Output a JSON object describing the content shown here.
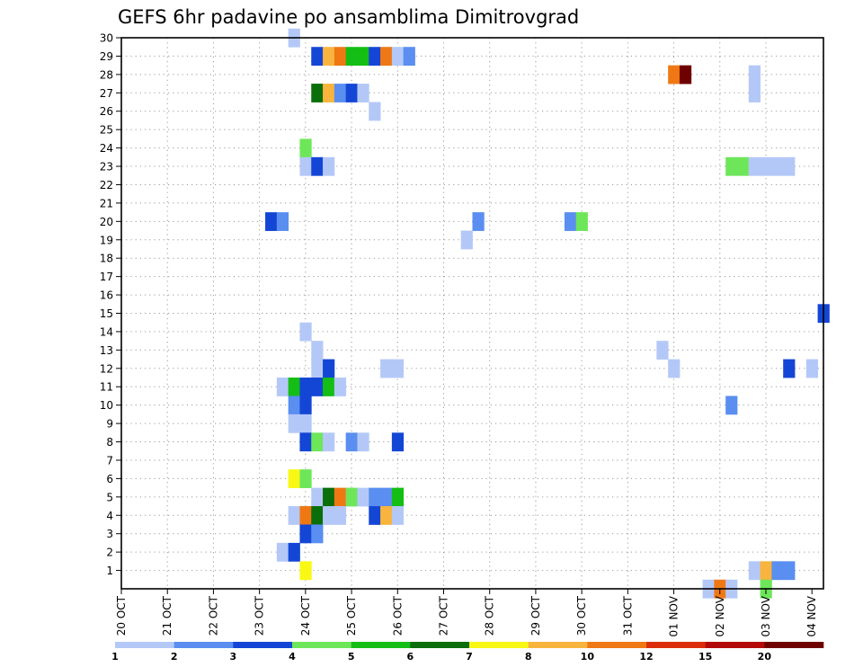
{
  "chart_data": {
    "type": "heatmap",
    "title": "GEFS 6hr padavine po ansamblima Dimitrovgrad",
    "xlabel": "",
    "ylabel": "",
    "x_tick_labels": [
      "20 OCT",
      "21 OCT",
      "22 OCT",
      "23 OCT",
      "24 OCT",
      "25 OCT",
      "26 OCT",
      "27 OCT",
      "28 OCT",
      "29 OCT",
      "30 OCT",
      "31 OCT",
      "01 NOV",
      "02 NOV",
      "03 NOV",
      "04 NOV"
    ],
    "y_tick_labels": [
      "1",
      "2",
      "3",
      "4",
      "5",
      "6",
      "7",
      "8",
      "9",
      "10",
      "11",
      "12",
      "13",
      "14",
      "15",
      "16",
      "17",
      "18",
      "19",
      "20",
      "21",
      "22",
      "23",
      "24",
      "25",
      "26",
      "27",
      "28",
      "29",
      "30"
    ],
    "x_range_steps": [
      0,
      61
    ],
    "y_range": [
      0,
      30
    ],
    "grid": true,
    "colorbar": {
      "labels": [
        "1",
        "2",
        "3",
        "4",
        "5",
        "6",
        "7",
        "8",
        "10",
        "12",
        "15",
        "20"
      ],
      "colors": [
        "#b4c8f8",
        "#5a8ef0",
        "#1446d6",
        "#6ee65a",
        "#14be14",
        "#0a6e0a",
        "#f8f814",
        "#f8b43c",
        "#f07814",
        "#dc2d0a",
        "#b40a0a",
        "#6e0000"
      ]
    },
    "cells": [
      {
        "member": 30,
        "step": 15,
        "cat": 1
      },
      {
        "member": 29,
        "step": 17,
        "cat": 3
      },
      {
        "member": 29,
        "step": 18,
        "cat": 8
      },
      {
        "member": 29,
        "step": 19,
        "cat": 9
      },
      {
        "member": 29,
        "step": 20,
        "cat": 5
      },
      {
        "member": 29,
        "step": 21,
        "cat": 5
      },
      {
        "member": 29,
        "step": 22,
        "cat": 3
      },
      {
        "member": 29,
        "step": 23,
        "cat": 9
      },
      {
        "member": 29,
        "step": 24,
        "cat": 1
      },
      {
        "member": 29,
        "step": 25,
        "cat": 2
      },
      {
        "member": 28,
        "step": 48,
        "cat": 9
      },
      {
        "member": 28,
        "step": 49,
        "cat": 12
      },
      {
        "member": 28,
        "step": 55,
        "cat": 1
      },
      {
        "member": 27,
        "step": 17,
        "cat": 6
      },
      {
        "member": 27,
        "step": 18,
        "cat": 8
      },
      {
        "member": 27,
        "step": 19,
        "cat": 2
      },
      {
        "member": 27,
        "step": 20,
        "cat": 3
      },
      {
        "member": 27,
        "step": 21,
        "cat": 1
      },
      {
        "member": 27,
        "step": 55,
        "cat": 1
      },
      {
        "member": 26,
        "step": 22,
        "cat": 1
      },
      {
        "member": 24,
        "step": 16,
        "cat": 4
      },
      {
        "member": 23,
        "step": 16,
        "cat": 1
      },
      {
        "member": 23,
        "step": 17,
        "cat": 3
      },
      {
        "member": 23,
        "step": 18,
        "cat": 1
      },
      {
        "member": 23,
        "step": 53,
        "cat": 4
      },
      {
        "member": 23,
        "step": 54,
        "cat": 4
      },
      {
        "member": 23,
        "step": 55,
        "cat": 1
      },
      {
        "member": 23,
        "step": 56,
        "cat": 1
      },
      {
        "member": 23,
        "step": 57,
        "cat": 1
      },
      {
        "member": 23,
        "step": 58,
        "cat": 1
      },
      {
        "member": 20,
        "step": 13,
        "cat": 3
      },
      {
        "member": 20,
        "step": 14,
        "cat": 2
      },
      {
        "member": 20,
        "step": 31,
        "cat": 2
      },
      {
        "member": 20,
        "step": 39,
        "cat": 2
      },
      {
        "member": 20,
        "step": 40,
        "cat": 4
      },
      {
        "member": 19,
        "step": 30,
        "cat": 1
      },
      {
        "member": 15,
        "step": 61,
        "cat": 3
      },
      {
        "member": 14,
        "step": 16,
        "cat": 1
      },
      {
        "member": 13,
        "step": 17,
        "cat": 1
      },
      {
        "member": 13,
        "step": 47,
        "cat": 1
      },
      {
        "member": 12,
        "step": 17,
        "cat": 1
      },
      {
        "member": 12,
        "step": 18,
        "cat": 3
      },
      {
        "member": 12,
        "step": 23,
        "cat": 1
      },
      {
        "member": 12,
        "step": 24,
        "cat": 1
      },
      {
        "member": 12,
        "step": 48,
        "cat": 1
      },
      {
        "member": 12,
        "step": 58,
        "cat": 3
      },
      {
        "member": 12,
        "step": 60,
        "cat": 1
      },
      {
        "member": 11,
        "step": 14,
        "cat": 1
      },
      {
        "member": 11,
        "step": 15,
        "cat": 5
      },
      {
        "member": 11,
        "step": 16,
        "cat": 3
      },
      {
        "member": 11,
        "step": 17,
        "cat": 3
      },
      {
        "member": 11,
        "step": 18,
        "cat": 5
      },
      {
        "member": 11,
        "step": 19,
        "cat": 1
      },
      {
        "member": 10,
        "step": 15,
        "cat": 2
      },
      {
        "member": 10,
        "step": 16,
        "cat": 3
      },
      {
        "member": 10,
        "step": 53,
        "cat": 2
      },
      {
        "member": 9,
        "step": 15,
        "cat": 1
      },
      {
        "member": 9,
        "step": 16,
        "cat": 1
      },
      {
        "member": 8,
        "step": 16,
        "cat": 3
      },
      {
        "member": 8,
        "step": 17,
        "cat": 4
      },
      {
        "member": 8,
        "step": 18,
        "cat": 1
      },
      {
        "member": 8,
        "step": 20,
        "cat": 2
      },
      {
        "member": 8,
        "step": 21,
        "cat": 1
      },
      {
        "member": 8,
        "step": 24,
        "cat": 3
      },
      {
        "member": 6,
        "step": 15,
        "cat": 7
      },
      {
        "member": 6,
        "step": 16,
        "cat": 4
      },
      {
        "member": 5,
        "step": 17,
        "cat": 1
      },
      {
        "member": 5,
        "step": 18,
        "cat": 6
      },
      {
        "member": 5,
        "step": 19,
        "cat": 9
      },
      {
        "member": 5,
        "step": 20,
        "cat": 4
      },
      {
        "member": 5,
        "step": 21,
        "cat": 1
      },
      {
        "member": 5,
        "step": 22,
        "cat": 2
      },
      {
        "member": 5,
        "step": 23,
        "cat": 2
      },
      {
        "member": 5,
        "step": 24,
        "cat": 5
      },
      {
        "member": 4,
        "step": 15,
        "cat": 1
      },
      {
        "member": 4,
        "step": 16,
        "cat": 9
      },
      {
        "member": 4,
        "step": 17,
        "cat": 6
      },
      {
        "member": 4,
        "step": 18,
        "cat": 1
      },
      {
        "member": 4,
        "step": 19,
        "cat": 1
      },
      {
        "member": 4,
        "step": 22,
        "cat": 3
      },
      {
        "member": 4,
        "step": 23,
        "cat": 8
      },
      {
        "member": 4,
        "step": 24,
        "cat": 1
      },
      {
        "member": 3,
        "step": 16,
        "cat": 3
      },
      {
        "member": 3,
        "step": 17,
        "cat": 2
      },
      {
        "member": 2,
        "step": 14,
        "cat": 1
      },
      {
        "member": 2,
        "step": 15,
        "cat": 3
      },
      {
        "member": 1,
        "step": 16,
        "cat": 7
      },
      {
        "member": 1,
        "step": 55,
        "cat": 1
      },
      {
        "member": 1,
        "step": 56,
        "cat": 8
      },
      {
        "member": 1,
        "step": 57,
        "cat": 2
      },
      {
        "member": 1,
        "step": 58,
        "cat": 2
      },
      {
        "member": 0,
        "step": 51,
        "cat": 1
      },
      {
        "member": 0,
        "step": 52,
        "cat": 9
      },
      {
        "member": 0,
        "step": 53,
        "cat": 1
      },
      {
        "member": 0,
        "step": 56,
        "cat": 4
      }
    ]
  }
}
